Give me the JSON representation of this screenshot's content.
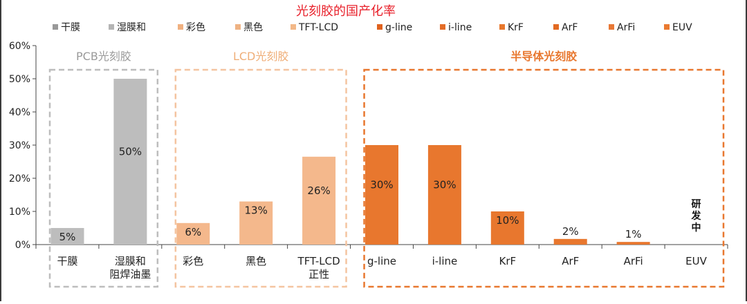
{
  "chart_data": {
    "type": "bar",
    "title": "光刻胶的国产化率",
    "title_color": "#e8202a",
    "ylim": [
      0,
      60
    ],
    "yticks": [
      "0%",
      "10%",
      "20%",
      "30%",
      "40%",
      "50%",
      "60%"
    ],
    "grid": false,
    "legend_position": "top",
    "legend": [
      {
        "label": "干膜",
        "color": "#999999"
      },
      {
        "label": "湿膜和",
        "color": "#b4b4b4"
      },
      {
        "label": "彩色",
        "color": "#f0b080"
      },
      {
        "label": "黑色",
        "color": "#efb283"
      },
      {
        "label": "TFT-LCD",
        "color": "#f3b888"
      },
      {
        "label": "g-line",
        "color": "#e0621e"
      },
      {
        "label": "i-line",
        "color": "#e36c27"
      },
      {
        "label": "KrF",
        "color": "#e8772c"
      },
      {
        "label": "ArF",
        "color": "#e26a22"
      },
      {
        "label": "ArFi",
        "color": "#e87836"
      },
      {
        "label": "EUV",
        "color": "#ea7a30"
      }
    ],
    "categories": [
      {
        "label": [
          "干膜"
        ],
        "value": 5,
        "value_label": "5%",
        "color": "#bdbdbd"
      },
      {
        "label": [
          "湿膜和",
          "阻焊油墨"
        ],
        "value": 50,
        "value_label": "50%",
        "color": "#bdbdbd"
      },
      {
        "label": [
          "彩色"
        ],
        "value": 6.5,
        "value_label": "6%",
        "color": "#f4b88c"
      },
      {
        "label": [
          "黑色"
        ],
        "value": 13,
        "value_label": "13%",
        "color": "#f4b88c"
      },
      {
        "label": [
          "TFT-LCD",
          "正性"
        ],
        "value": 26.5,
        "value_label": "26%",
        "color": "#f4b88c"
      },
      {
        "label": [
          "g-line"
        ],
        "value": 30,
        "value_label": "30%",
        "color": "#e8772e"
      },
      {
        "label": [
          "i-line"
        ],
        "value": 30,
        "value_label": "30%",
        "color": "#e8772e"
      },
      {
        "label": [
          "KrF"
        ],
        "value": 10,
        "value_label": "10%",
        "color": "#e8772e"
      },
      {
        "label": [
          "ArF"
        ],
        "value": 1.7,
        "value_label": "2%",
        "color": "#e8772e"
      },
      {
        "label": [
          "ArFi"
        ],
        "value": 0.8,
        "value_label": "1%",
        "color": "#e8772e"
      },
      {
        "label": [
          "EUV"
        ],
        "value": 0,
        "value_label": "研\n发\n中",
        "color": "#e8772e"
      }
    ],
    "groups": [
      {
        "label": "PCB光刻胶",
        "color": "#bdbdbd",
        "label_color": "#9a9a9a",
        "bold": false,
        "from": 0,
        "to": 1
      },
      {
        "label": "LCD光刻胶",
        "color": "#f4c4a0",
        "label_color": "#efae78",
        "bold": false,
        "from": 2,
        "to": 4
      },
      {
        "label": "半导体光刻胶",
        "color": "#e8772e",
        "label_color": "#e8772e",
        "bold": true,
        "from": 5,
        "to": 10
      }
    ]
  }
}
